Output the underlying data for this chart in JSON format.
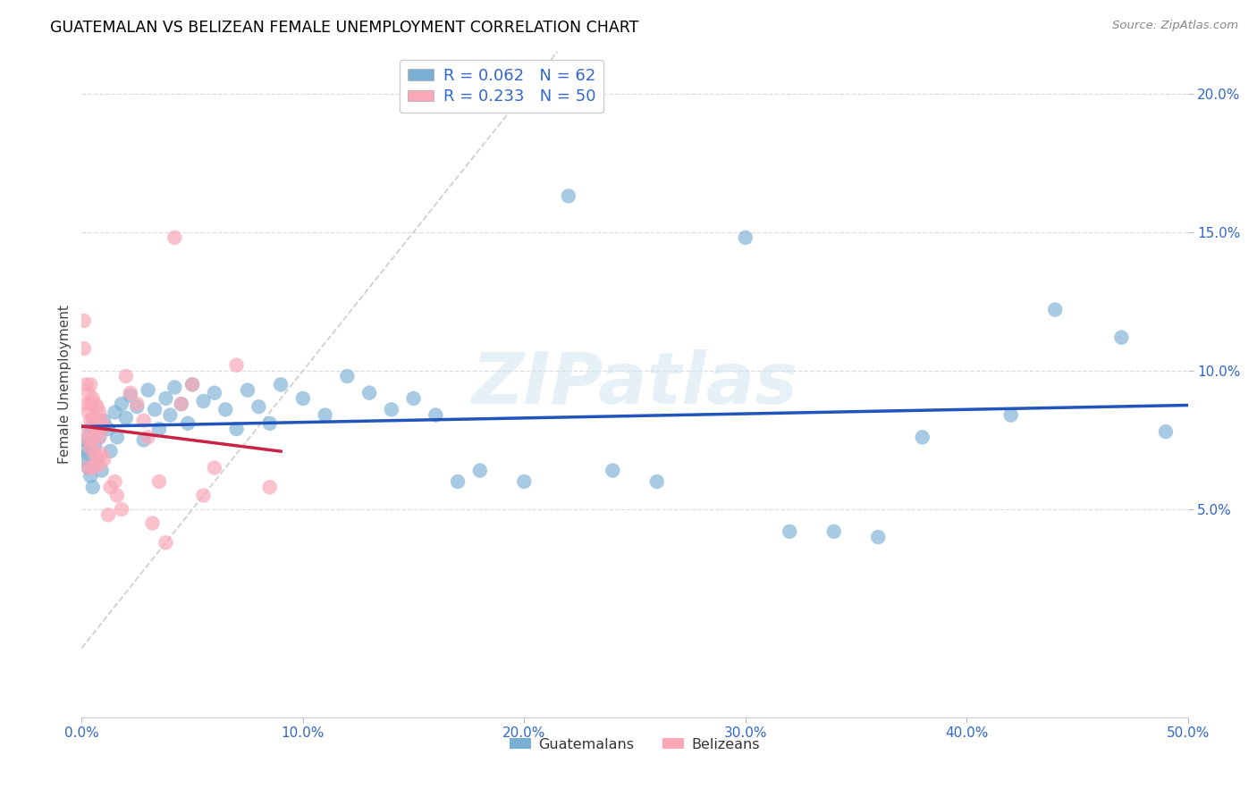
{
  "title": "GUATEMALAN VS BELIZEAN FEMALE UNEMPLOYMENT CORRELATION CHART",
  "source": "Source: ZipAtlas.com",
  "ylabel_label": "Female Unemployment",
  "watermark": "ZIPatlas",
  "xlim": [
    0.0,
    0.5
  ],
  "ylim": [
    -0.025,
    0.215
  ],
  "x_ticks": [
    0.0,
    0.1,
    0.2,
    0.3,
    0.4,
    0.5
  ],
  "x_tick_labels": [
    "0.0%",
    "10.0%",
    "20.0%",
    "30.0%",
    "40.0%",
    "50.0%"
  ],
  "y_ticks": [
    0.05,
    0.1,
    0.15,
    0.2
  ],
  "y_tick_labels": [
    "5.0%",
    "10.0%",
    "15.0%",
    "20.0%"
  ],
  "guatemalan_color": "#7aafd4",
  "belizean_color": "#f9a8b8",
  "trend_guatemalan_color": "#2255bb",
  "trend_belizean_color": "#cc2244",
  "diagonal_color": "#d0d0d0",
  "r_guatemalan": 0.062,
  "n_guatemalan": 62,
  "r_belizean": 0.233,
  "n_belizean": 50,
  "guatemalan_x": [
    0.001,
    0.002,
    0.002,
    0.003,
    0.003,
    0.004,
    0.004,
    0.005,
    0.005,
    0.006,
    0.007,
    0.008,
    0.009,
    0.01,
    0.012,
    0.013,
    0.015,
    0.016,
    0.018,
    0.02,
    0.022,
    0.025,
    0.028,
    0.03,
    0.033,
    0.035,
    0.038,
    0.04,
    0.042,
    0.045,
    0.048,
    0.05,
    0.055,
    0.06,
    0.065,
    0.07,
    0.075,
    0.08,
    0.085,
    0.09,
    0.1,
    0.11,
    0.12,
    0.13,
    0.14,
    0.15,
    0.16,
    0.17,
    0.18,
    0.2,
    0.22,
    0.24,
    0.26,
    0.3,
    0.32,
    0.34,
    0.36,
    0.38,
    0.42,
    0.44,
    0.47,
    0.49
  ],
  "guatemalan_y": [
    0.072,
    0.068,
    0.075,
    0.065,
    0.07,
    0.078,
    0.062,
    0.08,
    0.058,
    0.073,
    0.068,
    0.076,
    0.064,
    0.082,
    0.079,
    0.071,
    0.085,
    0.076,
    0.088,
    0.083,
    0.091,
    0.087,
    0.075,
    0.093,
    0.086,
    0.079,
    0.09,
    0.084,
    0.094,
    0.088,
    0.081,
    0.095,
    0.089,
    0.092,
    0.086,
    0.079,
    0.093,
    0.087,
    0.081,
    0.095,
    0.09,
    0.084,
    0.098,
    0.092,
    0.086,
    0.09,
    0.084,
    0.06,
    0.064,
    0.06,
    0.163,
    0.064,
    0.06,
    0.148,
    0.042,
    0.042,
    0.04,
    0.076,
    0.084,
    0.122,
    0.112,
    0.078
  ],
  "belizean_x": [
    0.001,
    0.001,
    0.002,
    0.002,
    0.002,
    0.003,
    0.003,
    0.003,
    0.003,
    0.004,
    0.004,
    0.004,
    0.004,
    0.005,
    0.005,
    0.005,
    0.005,
    0.006,
    0.006,
    0.006,
    0.007,
    0.007,
    0.007,
    0.008,
    0.008,
    0.008,
    0.009,
    0.009,
    0.01,
    0.01,
    0.012,
    0.013,
    0.015,
    0.016,
    0.018,
    0.02,
    0.022,
    0.025,
    0.028,
    0.03,
    0.032,
    0.035,
    0.038,
    0.042,
    0.045,
    0.05,
    0.055,
    0.06,
    0.07,
    0.085
  ],
  "belizean_y": [
    0.118,
    0.108,
    0.095,
    0.088,
    0.078,
    0.092,
    0.085,
    0.075,
    0.065,
    0.095,
    0.088,
    0.082,
    0.072,
    0.09,
    0.083,
    0.075,
    0.065,
    0.088,
    0.08,
    0.07,
    0.087,
    0.078,
    0.068,
    0.085,
    0.076,
    0.066,
    0.082,
    0.07,
    0.08,
    0.068,
    0.048,
    0.058,
    0.06,
    0.055,
    0.05,
    0.098,
    0.092,
    0.088,
    0.082,
    0.076,
    0.045,
    0.06,
    0.038,
    0.148,
    0.088,
    0.095,
    0.055,
    0.065,
    0.102,
    0.058
  ]
}
